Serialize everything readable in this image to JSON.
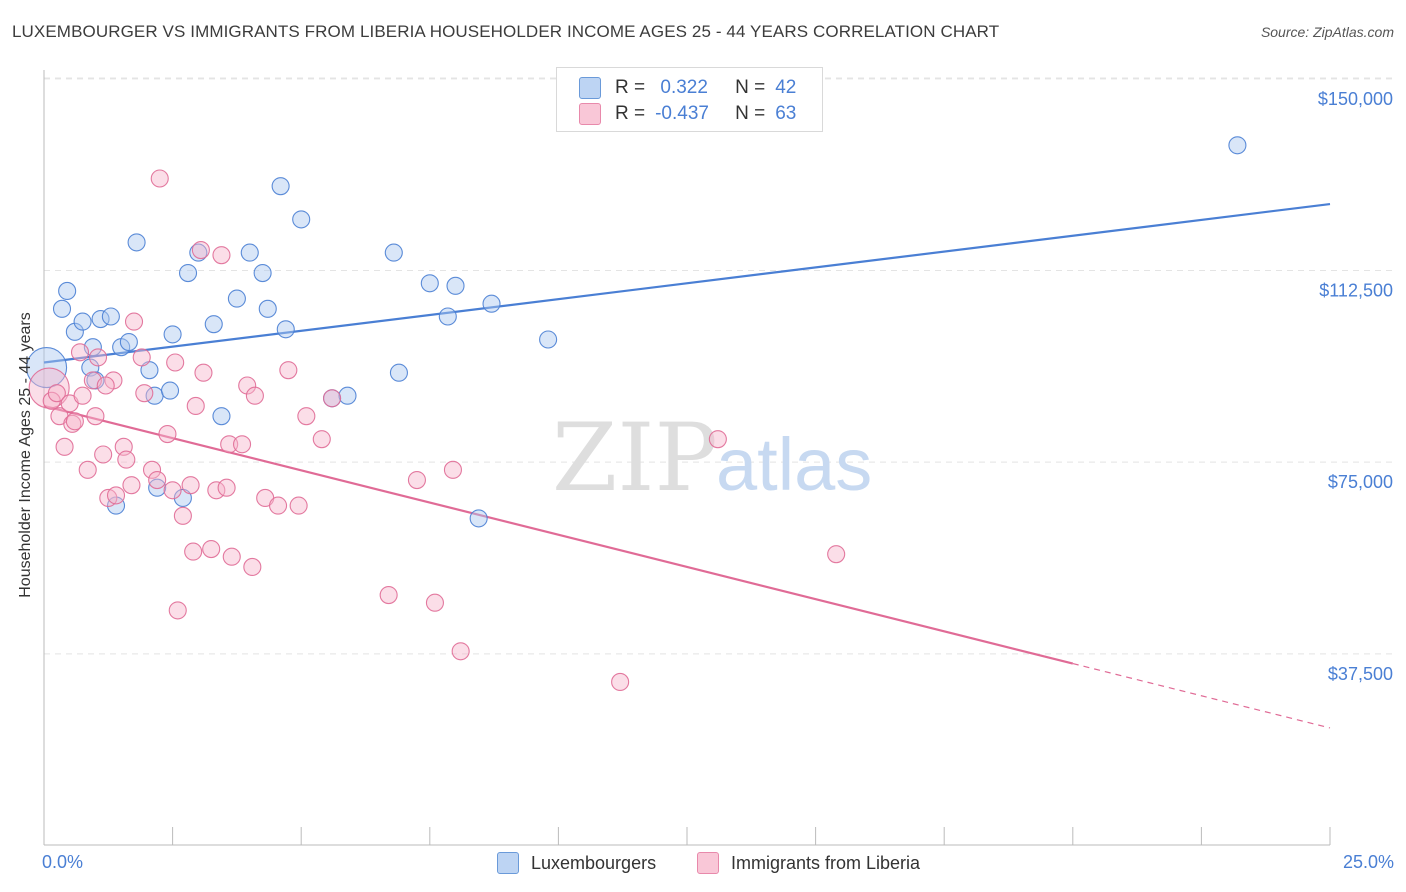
{
  "title": "LUXEMBOURGER VS IMMIGRANTS FROM LIBERIA HOUSEHOLDER INCOME AGES 25 - 44 YEARS CORRELATION CHART",
  "source": "Source: ZipAtlas.com",
  "watermark": {
    "zip": "ZIP",
    "atlas": "atlas"
  },
  "colors": {
    "blue": "#4a7fd4",
    "blue_fill": "#aac8f0",
    "pink": "#e06b96",
    "pink_fill": "#f6b6cb",
    "grid": "#e4e4e4",
    "axis_text": "#4a7fd4"
  },
  "legend": {
    "rows": [
      {
        "r_label": "R =",
        "r_value": " 0.322",
        "n_label": "N =",
        "n_value": "42"
      },
      {
        "r_label": "R =",
        "r_value": "-0.437",
        "n_label": "N =",
        "n_value": "63"
      }
    ]
  },
  "chart_data": {
    "type": "scatter",
    "title": "LUXEMBOURGER VS IMMIGRANTS FROM LIBERIA HOUSEHOLDER INCOME AGES 25 - 44 YEARS CORRELATION CHART",
    "xlabel": "",
    "ylabel": "Householder Income Ages 25 - 44 years",
    "xlim": [
      0,
      25
    ],
    "ylim": [
      0,
      153000
    ],
    "x_tick_labels": [
      "0.0%",
      "25.0%"
    ],
    "y_ticks": [
      {
        "value": 37500,
        "label": "$37,500"
      },
      {
        "value": 75000,
        "label": "$75,000"
      },
      {
        "value": 112500,
        "label": "$112,500"
      },
      {
        "value": 150000,
        "label": "$150,000"
      }
    ],
    "series": [
      {
        "name": "Luxembourgers",
        "color": "#4a7fd4",
        "fill": "#aac8f0",
        "trend": {
          "x": [
            0,
            25
          ],
          "y": [
            94500,
            125500
          ],
          "dashed_from": null
        },
        "points": [
          {
            "x": 0.05,
            "y": 93500,
            "big": true
          },
          {
            "x": 0.35,
            "y": 105000
          },
          {
            "x": 0.45,
            "y": 108500
          },
          {
            "x": 0.6,
            "y": 100500
          },
          {
            "x": 0.75,
            "y": 102500
          },
          {
            "x": 0.9,
            "y": 93500
          },
          {
            "x": 0.95,
            "y": 97500
          },
          {
            "x": 1.1,
            "y": 103000
          },
          {
            "x": 1.3,
            "y": 103500
          },
          {
            "x": 1.5,
            "y": 97500
          },
          {
            "x": 1.65,
            "y": 98500
          },
          {
            "x": 1.8,
            "y": 118000
          },
          {
            "x": 2.05,
            "y": 93000
          },
          {
            "x": 2.15,
            "y": 88000
          },
          {
            "x": 2.2,
            "y": 70000
          },
          {
            "x": 2.45,
            "y": 89000
          },
          {
            "x": 2.5,
            "y": 100000
          },
          {
            "x": 2.7,
            "y": 68000
          },
          {
            "x": 2.8,
            "y": 112000
          },
          {
            "x": 3.0,
            "y": 116000
          },
          {
            "x": 3.3,
            "y": 102000
          },
          {
            "x": 3.45,
            "y": 84000
          },
          {
            "x": 3.75,
            "y": 107000
          },
          {
            "x": 4.0,
            "y": 116000
          },
          {
            "x": 4.25,
            "y": 112000
          },
          {
            "x": 4.35,
            "y": 105000
          },
          {
            "x": 4.6,
            "y": 129000
          },
          {
            "x": 4.7,
            "y": 101000
          },
          {
            "x": 5.0,
            "y": 122500
          },
          {
            "x": 5.6,
            "y": 87500
          },
          {
            "x": 5.9,
            "y": 88000
          },
          {
            "x": 6.8,
            "y": 116000
          },
          {
            "x": 6.9,
            "y": 92500
          },
          {
            "x": 7.5,
            "y": 110000
          },
          {
            "x": 7.85,
            "y": 103500
          },
          {
            "x": 8.0,
            "y": 109500
          },
          {
            "x": 8.7,
            "y": 106000
          },
          {
            "x": 9.8,
            "y": 99000
          },
          {
            "x": 8.45,
            "y": 64000
          },
          {
            "x": 23.2,
            "y": 137000
          },
          {
            "x": 1.4,
            "y": 66500
          },
          {
            "x": 1.0,
            "y": 91000
          }
        ]
      },
      {
        "name": "Immigrants from Liberia",
        "color": "#e06b96",
        "fill": "#f6b6cb",
        "trend": {
          "x": [
            0,
            25
          ],
          "y": [
            86000,
            23000
          ],
          "dashed_from": 20.0
        },
        "points": [
          {
            "x": 0.1,
            "y": 89500,
            "big": true
          },
          {
            "x": 0.15,
            "y": 87000
          },
          {
            "x": 0.25,
            "y": 88500
          },
          {
            "x": 0.3,
            "y": 84000
          },
          {
            "x": 0.4,
            "y": 78000
          },
          {
            "x": 0.5,
            "y": 86500
          },
          {
            "x": 0.55,
            "y": 82500
          },
          {
            "x": 0.6,
            "y": 83000
          },
          {
            "x": 0.7,
            "y": 96500
          },
          {
            "x": 0.75,
            "y": 88000
          },
          {
            "x": 0.85,
            "y": 73500
          },
          {
            "x": 0.95,
            "y": 91000
          },
          {
            "x": 1.0,
            "y": 84000
          },
          {
            "x": 1.05,
            "y": 95500
          },
          {
            "x": 1.15,
            "y": 76500
          },
          {
            "x": 1.25,
            "y": 68000
          },
          {
            "x": 1.35,
            "y": 91000
          },
          {
            "x": 1.4,
            "y": 68500
          },
          {
            "x": 1.55,
            "y": 78000
          },
          {
            "x": 1.6,
            "y": 75500
          },
          {
            "x": 1.7,
            "y": 70500
          },
          {
            "x": 1.75,
            "y": 102500
          },
          {
            "x": 1.9,
            "y": 95500
          },
          {
            "x": 1.95,
            "y": 88500
          },
          {
            "x": 2.1,
            "y": 73500
          },
          {
            "x": 2.2,
            "y": 71500
          },
          {
            "x": 2.25,
            "y": 130500
          },
          {
            "x": 2.4,
            "y": 80500
          },
          {
            "x": 2.5,
            "y": 69500
          },
          {
            "x": 2.55,
            "y": 94500
          },
          {
            "x": 2.6,
            "y": 46000
          },
          {
            "x": 2.7,
            "y": 64500
          },
          {
            "x": 2.85,
            "y": 70500
          },
          {
            "x": 2.9,
            "y": 57500
          },
          {
            "x": 2.95,
            "y": 86000
          },
          {
            "x": 3.05,
            "y": 116500
          },
          {
            "x": 3.1,
            "y": 92500
          },
          {
            "x": 3.25,
            "y": 58000
          },
          {
            "x": 3.35,
            "y": 69500
          },
          {
            "x": 3.45,
            "y": 115500
          },
          {
            "x": 3.55,
            "y": 70000
          },
          {
            "x": 3.6,
            "y": 78500
          },
          {
            "x": 3.65,
            "y": 56500
          },
          {
            "x": 3.85,
            "y": 78500
          },
          {
            "x": 3.95,
            "y": 90000
          },
          {
            "x": 4.05,
            "y": 54500
          },
          {
            "x": 4.1,
            "y": 88000
          },
          {
            "x": 4.3,
            "y": 68000
          },
          {
            "x": 4.55,
            "y": 66500
          },
          {
            "x": 4.75,
            "y": 93000
          },
          {
            "x": 4.95,
            "y": 66500
          },
          {
            "x": 5.1,
            "y": 84000
          },
          {
            "x": 5.4,
            "y": 79500
          },
          {
            "x": 5.6,
            "y": 87500
          },
          {
            "x": 6.7,
            "y": 49000
          },
          {
            "x": 7.25,
            "y": 71500
          },
          {
            "x": 7.6,
            "y": 47500
          },
          {
            "x": 7.95,
            "y": 73500
          },
          {
            "x": 8.1,
            "y": 38000
          },
          {
            "x": 11.2,
            "y": 32000
          },
          {
            "x": 13.1,
            "y": 79500
          },
          {
            "x": 15.4,
            "y": 57000
          },
          {
            "x": 1.2,
            "y": 90000
          }
        ]
      }
    ]
  }
}
